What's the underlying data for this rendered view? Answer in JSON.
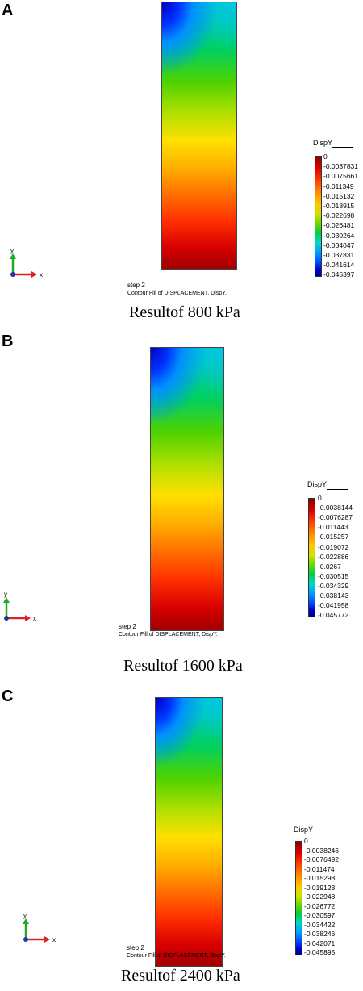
{
  "panels": [
    {
      "letter": "A",
      "legend_title": "DispY",
      "legend_values": [
        "0",
        "-0.0037831",
        "-0.0075661",
        "-0.011349",
        "-0.015132",
        "-0.018915",
        "-0.022698",
        "-0.026481",
        "-0.030264",
        "-0.034047",
        "-0.037831",
        "-0.041614",
        "-0.045397"
      ],
      "step_label": "step 2",
      "fill_label": "Contour Fill of DISPLACEMENT, DispY.",
      "caption": "Resultof 800 kPa",
      "axis_x": "x",
      "axis_y": "y"
    },
    {
      "letter": "B",
      "legend_title": "DispY",
      "legend_values": [
        "0",
        "-0.0038144",
        "-0.0076287",
        "-0.011443",
        "-0.015257",
        "-0.019072",
        "-0.022886",
        "-0.0267",
        "-0.030515",
        "-0.034329",
        "-0.038143",
        "-0.041958",
        "-0.045772"
      ],
      "step_label": "step 2",
      "fill_label": "Contour Fill of DISPLACEMENT, DispY.",
      "caption": "Resultof 1600 kPa",
      "axis_x": "x",
      "axis_y": "y"
    },
    {
      "letter": "C",
      "legend_title": "DispY",
      "legend_values": [
        "0",
        "-0.0038246",
        "-0.0076492",
        "-0.011474",
        "-0.015298",
        "-0.019123",
        "-0.022948",
        "-0.026772",
        "-0.030597",
        "-0.034422",
        "-0.038246",
        "-0.042071",
        "-0.045895"
      ],
      "step_label": "step 2",
      "fill_label": "Contour Fill of DISPLACEMENT, DispY.",
      "caption": "Resultof 2400 kPa",
      "axis_x": "x",
      "axis_y": "y"
    }
  ],
  "colors": {
    "scale": [
      "#8b0000",
      "#d00000",
      "#f02000",
      "#ff5a00",
      "#ff9600",
      "#ffd200",
      "#d8e600",
      "#8cdc00",
      "#3cd200",
      "#00c87a",
      "#00d8d8",
      "#00a0ff",
      "#0050ff",
      "#0000c8",
      "#00008b"
    ]
  }
}
